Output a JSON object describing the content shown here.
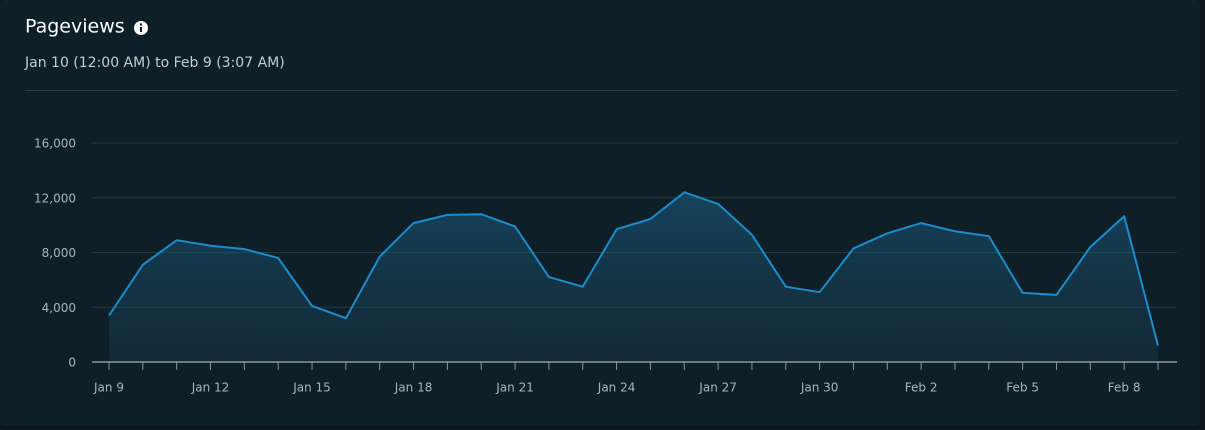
{
  "chart_data": {
    "type": "line",
    "title": "Pageviews",
    "subtitle": "Jan 10 (12:00 AM) to Feb 9 (3:07 AM)",
    "categories": [
      "Jan 9",
      null,
      null,
      "Jan 12",
      null,
      null,
      "Jan 15",
      null,
      null,
      "Jan 18",
      null,
      null,
      "Jan 21",
      null,
      null,
      "Jan 24",
      null,
      null,
      "Jan 27",
      null,
      null,
      "Jan 30",
      null,
      null,
      "Feb 2",
      null,
      null,
      "Feb 5",
      null,
      null,
      "Feb 8",
      null
    ],
    "series": [
      {
        "name": "Pageviews",
        "color": "#1b8ccc",
        "values": [
          3400,
          7100,
          8900,
          8500,
          8250,
          7600,
          4100,
          3200,
          7700,
          10150,
          10750,
          10800,
          9900,
          6200,
          5500,
          9700,
          10450,
          12400,
          11550,
          9300,
          5500,
          5100,
          8300,
          9400,
          10150,
          9550,
          9200,
          5050,
          4900,
          8400,
          10650,
          1200
        ]
      }
    ],
    "ylim": [
      0,
      16000
    ],
    "yticks": [
      0,
      {
        "value": 4000,
        "label": "4,000"
      },
      {
        "value": 8000,
        "label": "8,000"
      },
      {
        "value": 12000,
        "label": "12,000"
      },
      {
        "value": 16000,
        "label": "16,000"
      }
    ],
    "grid": true
  }
}
